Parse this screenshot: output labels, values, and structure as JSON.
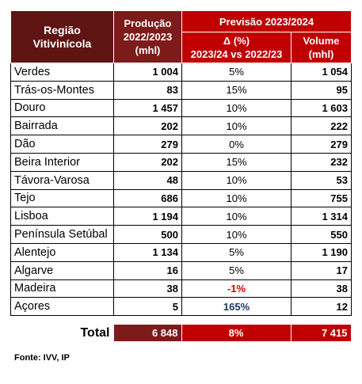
{
  "header": {
    "region": [
      "Região",
      "Vitivinícola"
    ],
    "production": [
      "Produção",
      "2022/2023",
      "(mhl)"
    ],
    "forecast": "Previsão 2023/2024",
    "change": [
      "Δ (%)",
      "2023/24 vs 2022/23"
    ],
    "volume": [
      "Volume",
      "(mhl)"
    ]
  },
  "rows": [
    [
      "Verdes",
      "1 004",
      "5%",
      "1 054"
    ],
    [
      "Trás-os-Montes",
      "83",
      "15%",
      "95"
    ],
    [
      "Douro",
      "1 457",
      "10%",
      "1 603"
    ],
    [
      "Bairrada",
      "202",
      "10%",
      "222"
    ],
    [
      "Dão",
      "279",
      "0%",
      "279"
    ],
    [
      "Beira Interior",
      "202",
      "15%",
      "232"
    ],
    [
      "Távora-Varosa",
      "48",
      "10%",
      "53"
    ],
    [
      "Tejo",
      "686",
      "10%",
      "755"
    ],
    [
      "Lisboa",
      "1 194",
      "10%",
      "1 314"
    ],
    [
      "Península Setúbal",
      "500",
      "10%",
      "550"
    ],
    [
      "Alentejo",
      "1 134",
      "5%",
      "1 190"
    ],
    [
      "Algarve",
      "16",
      "5%",
      "17"
    ],
    [
      "Madeira",
      "38",
      "-1%",
      "38"
    ],
    [
      "Açores",
      "5",
      "165%",
      "12"
    ]
  ],
  "total": {
    "label": "Total",
    "values": [
      "6 848",
      "8%",
      "7 415"
    ]
  },
  "source": "Fonte: IVV, IP"
}
